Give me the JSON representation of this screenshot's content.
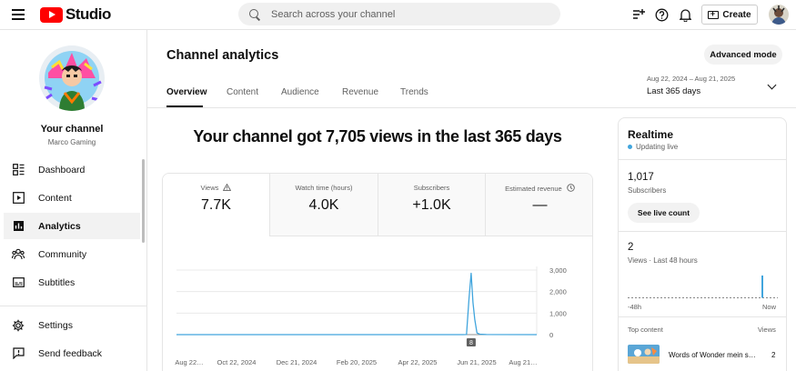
{
  "app": {
    "logo_text": "Studio",
    "search_placeholder": "Search across your channel",
    "create_label": "Create"
  },
  "channel": {
    "name": "Your channel",
    "handle": "Marco Gaming"
  },
  "sidebar": {
    "items": [
      {
        "label": "Dashboard",
        "icon": "dashboard-icon"
      },
      {
        "label": "Content",
        "icon": "content-icon"
      },
      {
        "label": "Analytics",
        "icon": "analytics-icon"
      },
      {
        "label": "Community",
        "icon": "community-icon"
      },
      {
        "label": "Subtitles",
        "icon": "subtitles-icon"
      }
    ],
    "bottom_items": [
      {
        "label": "Settings",
        "icon": "gear-icon"
      },
      {
        "label": "Send feedback",
        "icon": "feedback-icon"
      }
    ]
  },
  "main": {
    "title": "Channel analytics",
    "advanced_mode_label": "Advanced mode",
    "tabs": [
      {
        "label": "Overview"
      },
      {
        "label": "Content"
      },
      {
        "label": "Audience"
      },
      {
        "label": "Revenue"
      },
      {
        "label": "Trends"
      }
    ],
    "date_range": "Aug 22, 2024 – Aug 21, 2025",
    "date_label": "Last 365 days",
    "headline": "Your channel got 7,705 views in the last 365 days",
    "stats": [
      {
        "label": "Views",
        "value": "7.7K"
      },
      {
        "label": "Watch time (hours)",
        "value": "4.0K"
      },
      {
        "label": "Subscribers",
        "value": "+1.0K"
      },
      {
        "label": "Estimated revenue",
        "value": "—"
      }
    ]
  },
  "chart_data": {
    "type": "line",
    "x_ticks": [
      "Aug 22…",
      "Oct 22, 2024",
      "Dec 21, 2024",
      "Feb 20, 2025",
      "Apr 22, 2025",
      "Jun 21, 2025",
      "Aug 21…"
    ],
    "y_ticks": [
      "3,000",
      "2,000",
      "1,000",
      "0"
    ],
    "ylim": [
      0,
      3000
    ],
    "marker_label": "8",
    "series": [
      {
        "color": "#41a5dd",
        "points": [
          [
            0,
            0
          ],
          [
            0.795,
            0
          ],
          [
            0.805,
            5
          ],
          [
            0.812,
            1700
          ],
          [
            0.818,
            2850
          ],
          [
            0.823,
            1500
          ],
          [
            0.828,
            700
          ],
          [
            0.834,
            80
          ],
          [
            0.842,
            20
          ],
          [
            0.86,
            5
          ],
          [
            1,
            0
          ]
        ]
      }
    ]
  },
  "realtime": {
    "title": "Realtime",
    "status": "Updating live",
    "subscribers_value": "1,017",
    "subscribers_label": "Subscribers",
    "live_count_label": "See live count",
    "views_value": "2",
    "views_label": "Views · Last 48 hours",
    "axis_start": "-48h",
    "axis_end": "Now",
    "top_content_label": "Top content",
    "views_column_label": "Views",
    "top_item_title": "Words of Wonder mein s…",
    "top_item_views": "2"
  }
}
